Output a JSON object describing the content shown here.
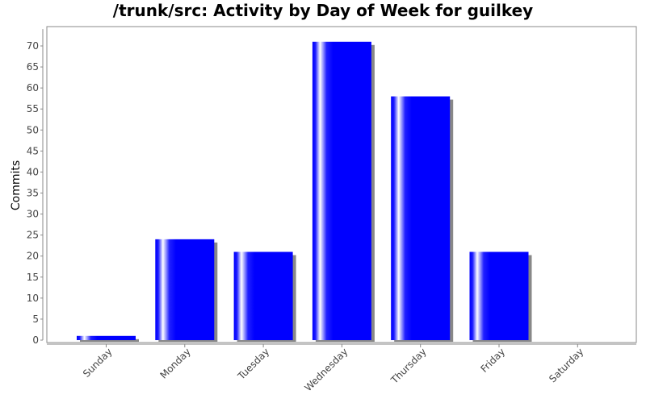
{
  "chart_data": {
    "type": "bar",
    "title": "/trunk/src: Activity by Day of Week for guilkey",
    "xlabel": "",
    "ylabel": "Commits",
    "categories": [
      "Sunday",
      "Monday",
      "Tuesday",
      "Wednesday",
      "Thursday",
      "Friday",
      "Saturday"
    ],
    "values": [
      1,
      24,
      21,
      71,
      58,
      21,
      0
    ],
    "ylim": [
      0,
      74
    ],
    "yticks": [
      0,
      5,
      10,
      15,
      20,
      25,
      30,
      35,
      40,
      45,
      50,
      55,
      60,
      65,
      70
    ],
    "grid": false,
    "legend": "none",
    "colors": {
      "bar": "#0000ff",
      "bar_highlight": "#ffffff",
      "shadow": "#888888",
      "plot_border": "#888888"
    }
  }
}
